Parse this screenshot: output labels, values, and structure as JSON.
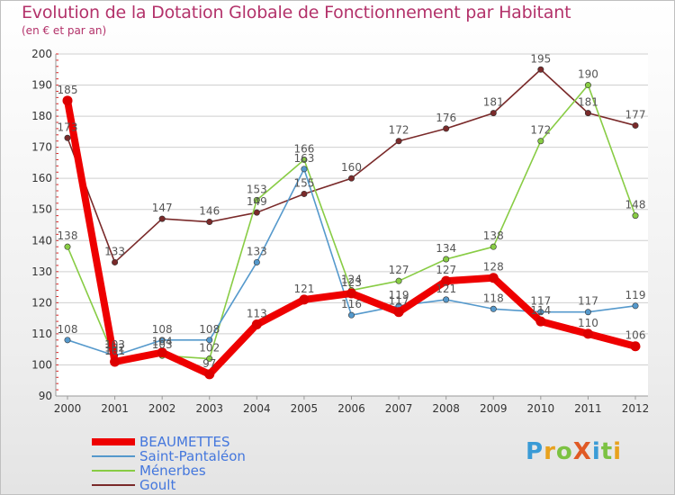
{
  "header": {
    "title": "Evolution de la Dotation Globale de Fonctionnement par Habitant",
    "subtitle": "(en € et par an)"
  },
  "logo": {
    "text": "ProXiti",
    "letters": [
      "P",
      "r",
      "o",
      "X",
      "i",
      "t",
      "i"
    ],
    "colors": [
      "#3a9bd6",
      "#e8a21e",
      "#7cc242",
      "#e05a25",
      "#3a9bd6",
      "#7cc242",
      "#e8a21e"
    ]
  },
  "chart_data": {
    "type": "line",
    "title": "Evolution de la Dotation Globale de Fonctionnement par Habitant",
    "subtitle": "(en € et par an)",
    "xlabel": "",
    "ylabel": "",
    "categories": [
      "2000",
      "2001",
      "2002",
      "2003",
      "2004",
      "2005",
      "2006",
      "2007",
      "2008",
      "2009",
      "2010",
      "2011",
      "2012"
    ],
    "ylim": [
      90,
      200
    ],
    "yticks": [
      90,
      100,
      110,
      120,
      130,
      140,
      150,
      160,
      170,
      180,
      190,
      200
    ],
    "grid": "horizontal",
    "legend_position": "bottom-left",
    "series": [
      {
        "name": "BEAUMETTES",
        "color": "#ee0000",
        "values": [
          185,
          101,
          104,
          97,
          113,
          121,
          123,
          117,
          127,
          128,
          114,
          110,
          106
        ],
        "labels": [
          "185",
          "101",
          "104",
          "97",
          "113",
          "121",
          "123",
          "117",
          "127",
          "128",
          "114",
          "110",
          "106"
        ]
      },
      {
        "name": "Saint-Pantaléon",
        "color": "#5599cc",
        "values": [
          108,
          103,
          108,
          108,
          133,
          163,
          116,
          119,
          121,
          118,
          117,
          117,
          119
        ],
        "labels": [
          "108",
          "103",
          "108",
          "108",
          "133",
          "163",
          "116",
          "119",
          "121",
          "118",
          "117",
          "117",
          "119"
        ]
      },
      {
        "name": "Ménerbes",
        "color": "#88cc44",
        "values": [
          138,
          102,
          103,
          102,
          153,
          166,
          124,
          127,
          134,
          138,
          172,
          190,
          148
        ],
        "labels": [
          "138",
          "102",
          "103",
          "102",
          "153",
          "166",
          "124",
          "127",
          "134",
          "138",
          "172",
          "190",
          "148"
        ]
      },
      {
        "name": "Goult",
        "color": "#7a2a2a",
        "values": [
          173,
          133,
          147,
          146,
          149,
          155,
          160,
          172,
          176,
          181,
          195,
          181,
          177
        ],
        "labels": [
          "173",
          "133",
          "147",
          "146",
          "149",
          "155",
          "160",
          "172",
          "176",
          "181",
          "195",
          "181",
          "177"
        ]
      }
    ]
  }
}
